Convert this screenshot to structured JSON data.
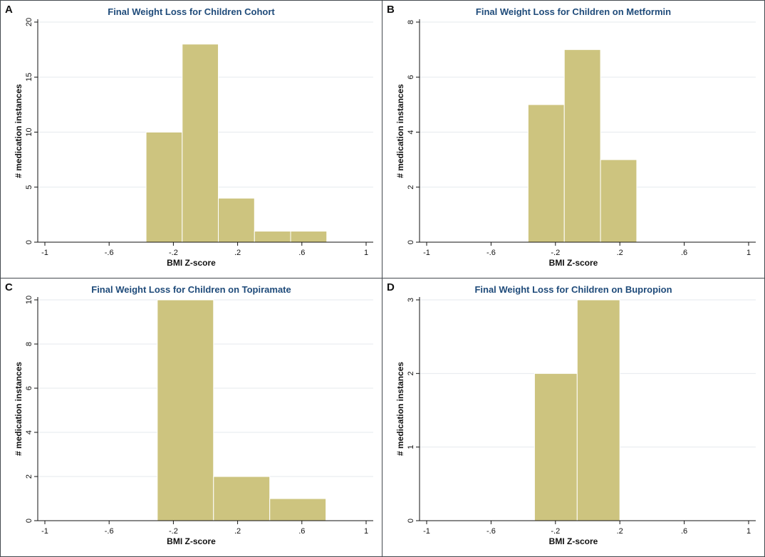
{
  "chart_data": [
    {
      "panel": "A",
      "type": "bar",
      "title": "Final Weight Loss for Children Cohort",
      "xlabel": "BMI Z-score",
      "ylabel": "# medication instances",
      "xlim": [
        -1,
        1
      ],
      "ylim": [
        0,
        20
      ],
      "xticks": [
        -1,
        -0.6,
        -0.2,
        0.2,
        0.6,
        1
      ],
      "xtick_labels": [
        "-1",
        "-.6",
        "-.2",
        ".2",
        ".6",
        "1"
      ],
      "yticks": [
        0,
        5,
        10,
        15,
        20
      ],
      "ytick_labels": [
        "0",
        "5",
        "10",
        "15",
        "20"
      ],
      "bin_edges": [
        -0.37,
        -0.145,
        0.08,
        0.305,
        0.53,
        0.755
      ],
      "values": [
        10,
        18,
        4,
        1,
        1
      ]
    },
    {
      "panel": "B",
      "type": "bar",
      "title": "Final Weight Loss for Children on Metformin",
      "xlabel": "BMI Z-score",
      "ylabel": "# medication instances",
      "xlim": [
        -1,
        1
      ],
      "ylim": [
        0,
        8
      ],
      "xticks": [
        -1,
        -0.6,
        -0.2,
        0.2,
        0.6,
        1
      ],
      "xtick_labels": [
        "-1",
        "-.6",
        "-.2",
        ".2",
        ".6",
        "1"
      ],
      "yticks": [
        0,
        2,
        4,
        6,
        8
      ],
      "ytick_labels": [
        "0",
        "2",
        "4",
        "6",
        "8"
      ],
      "bin_edges": [
        -0.37,
        -0.145,
        0.08,
        0.305
      ],
      "values": [
        5,
        7,
        3
      ]
    },
    {
      "panel": "C",
      "type": "bar",
      "title": "Final Weight Loss for Children on Topiramate",
      "xlabel": "BMI Z-score",
      "ylabel": "# medication instances",
      "xlim": [
        -1,
        1
      ],
      "ylim": [
        0,
        10
      ],
      "xticks": [
        -1,
        -0.6,
        -0.2,
        0.2,
        0.6,
        1
      ],
      "xtick_labels": [
        "-1",
        "-.6",
        "-.2",
        ".2",
        ".6",
        "1"
      ],
      "yticks": [
        0,
        2,
        4,
        6,
        8,
        10
      ],
      "ytick_labels": [
        "0",
        "2",
        "4",
        "6",
        "8",
        "10"
      ],
      "bin_edges": [
        -0.3,
        0.05,
        0.4,
        0.75
      ],
      "values": [
        10,
        2,
        1
      ]
    },
    {
      "panel": "D",
      "type": "bar",
      "title": "Final Weight Loss for Children on Bupropion",
      "xlabel": "BMI Z-score",
      "ylabel": "# medication instances",
      "xlim": [
        -1,
        1
      ],
      "ylim": [
        0,
        3
      ],
      "xticks": [
        -1,
        -0.6,
        -0.2,
        0.2,
        0.6,
        1
      ],
      "xtick_labels": [
        "-1",
        "-.6",
        "-.2",
        ".2",
        ".6",
        "1"
      ],
      "yticks": [
        0,
        1,
        2,
        3
      ],
      "ytick_labels": [
        "0",
        "1",
        "2",
        "3"
      ],
      "bin_edges": [
        -0.33,
        -0.065,
        0.2
      ],
      "values": [
        2,
        3
      ]
    }
  ],
  "colors": {
    "bar_fill": "#cdc47f",
    "bar_stroke": "#ffffff",
    "grid": "#e6eaee",
    "axis": "#111111",
    "title": "#1f4b7a"
  }
}
